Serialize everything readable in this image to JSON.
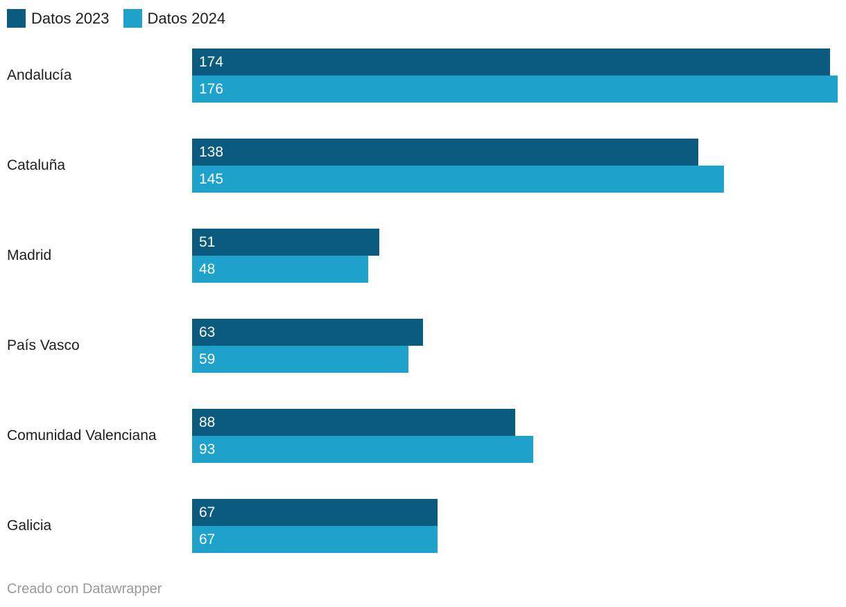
{
  "legend": {
    "items": [
      {
        "label": "Datos 2023",
        "color": "#0b5b7e"
      },
      {
        "label": "Datos 2024",
        "color": "#1ea2cc"
      }
    ]
  },
  "footer": {
    "text": "Creado con Datawrapper"
  },
  "chart_data": {
    "type": "bar",
    "orientation": "horizontal",
    "title": "",
    "xlabel": "",
    "ylabel": "",
    "categories": [
      "Andalucía",
      "Cataluña",
      "Madrid",
      "País Vasco",
      "Comunidad Valenciana",
      "Galicia"
    ],
    "series": [
      {
        "name": "Datos 2023",
        "color": "#0b5b7e",
        "values": [
          174,
          138,
          51,
          63,
          88,
          67
        ]
      },
      {
        "name": "Datos 2024",
        "color": "#1ea2cc",
        "values": [
          176,
          145,
          48,
          59,
          93,
          67
        ]
      }
    ],
    "value_labels": true,
    "xlim": [
      0,
      176
    ],
    "grid": false,
    "legend_position": "top-left"
  }
}
